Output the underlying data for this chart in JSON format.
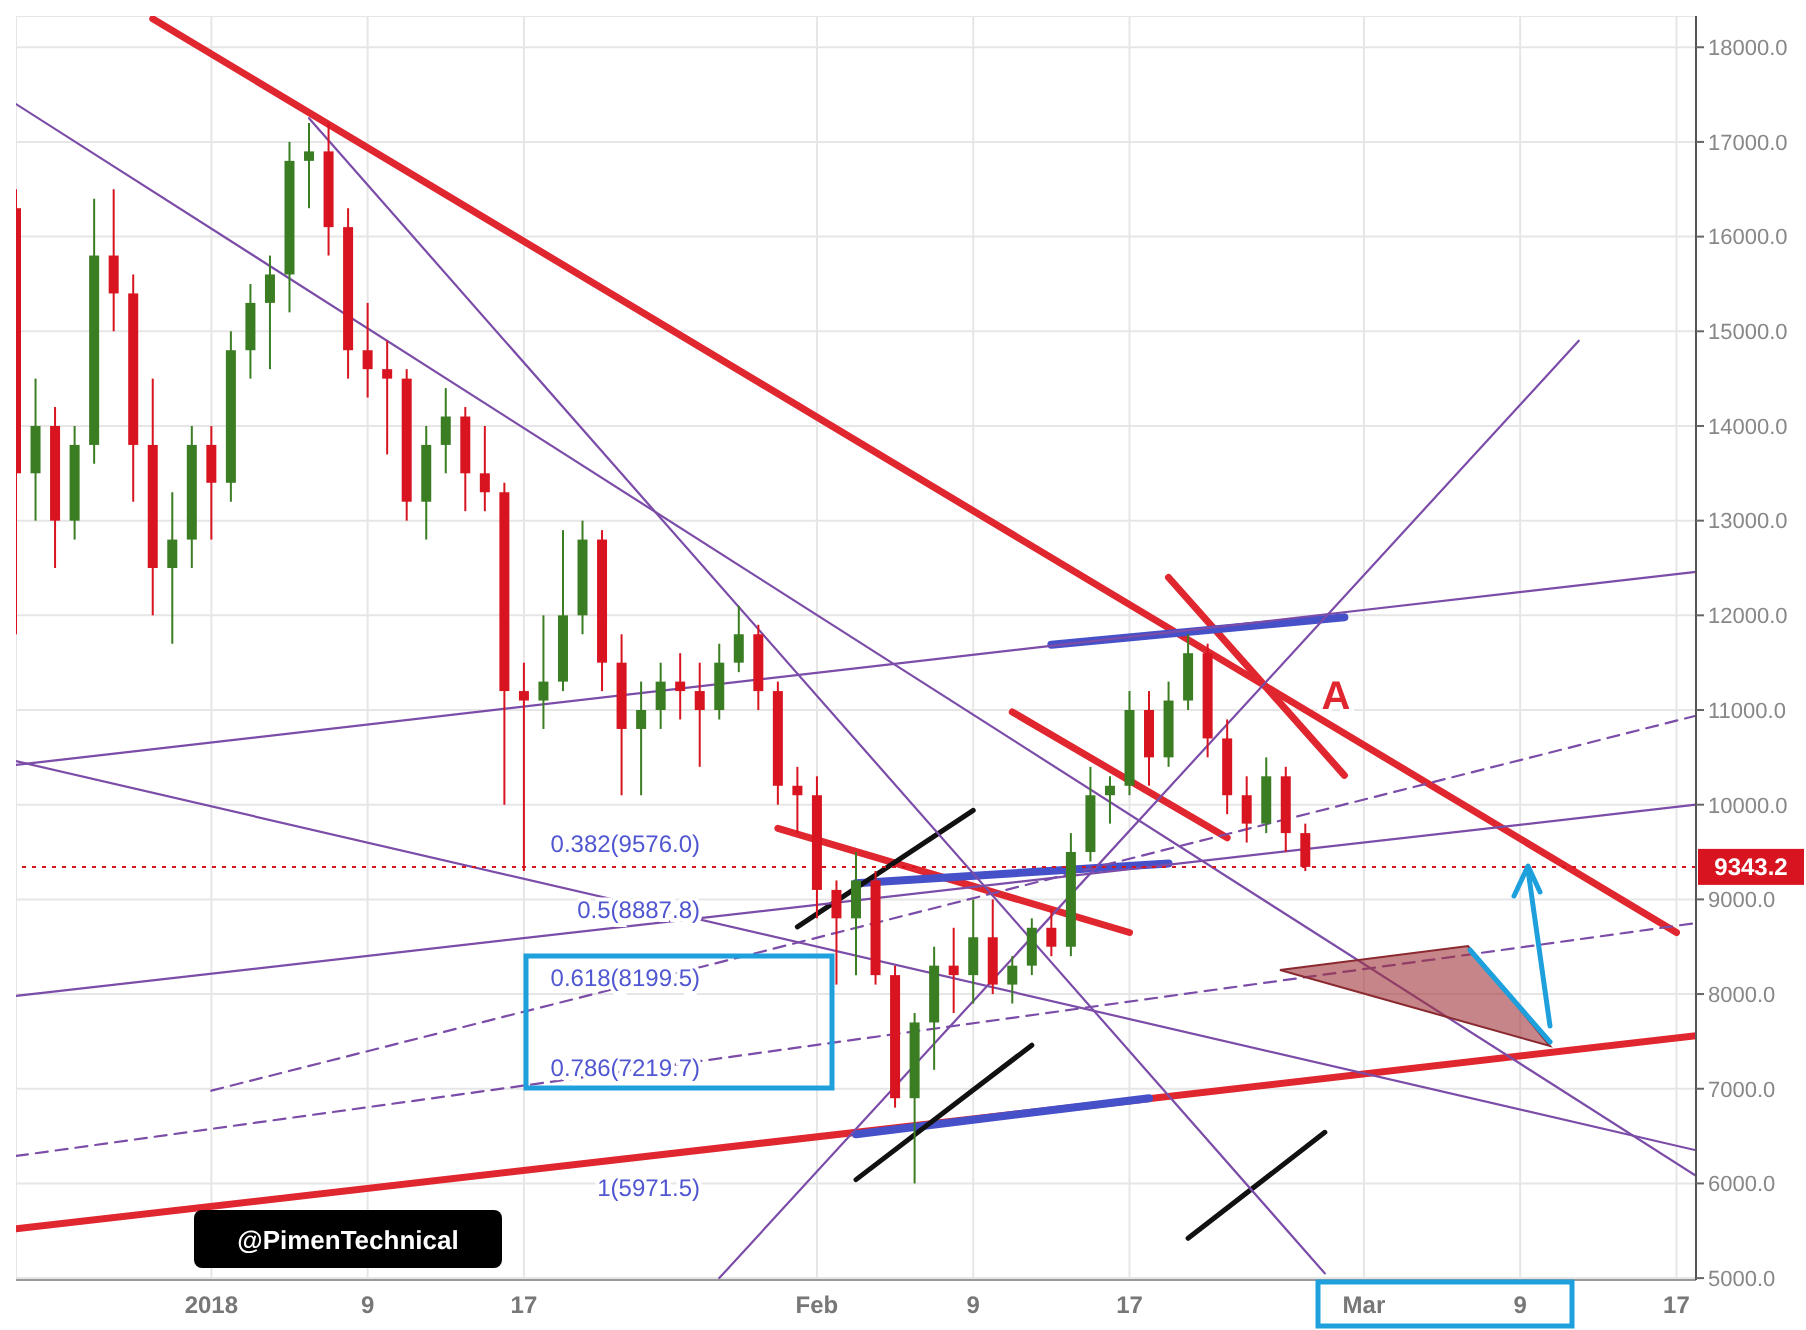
{
  "chart_data": {
    "type": "candlestick",
    "x": [
      "2017-12-22",
      "2017-12-23",
      "2017-12-24",
      "2017-12-25",
      "2017-12-26",
      "2017-12-27",
      "2017-12-28",
      "2017-12-29",
      "2017-12-30",
      "2017-12-31",
      "2018-01-01",
      "2018-01-02",
      "2018-01-03",
      "2018-01-04",
      "2018-01-05",
      "2018-01-06",
      "2018-01-07",
      "2018-01-08",
      "2018-01-09",
      "2018-01-10",
      "2018-01-11",
      "2018-01-12",
      "2018-01-13",
      "2018-01-14",
      "2018-01-15",
      "2018-01-16",
      "2018-01-17",
      "2018-01-18",
      "2018-01-19",
      "2018-01-20",
      "2018-01-21",
      "2018-01-22",
      "2018-01-23",
      "2018-01-24",
      "2018-01-25",
      "2018-01-26",
      "2018-01-27",
      "2018-01-28",
      "2018-01-29",
      "2018-01-30",
      "2018-01-31",
      "2018-02-01",
      "2018-02-02",
      "2018-02-03",
      "2018-02-04",
      "2018-02-05",
      "2018-02-06",
      "2018-02-07",
      "2018-02-08",
      "2018-02-09",
      "2018-02-10",
      "2018-02-11",
      "2018-02-12",
      "2018-02-13",
      "2018-02-14",
      "2018-02-15",
      "2018-02-16",
      "2018-02-17",
      "2018-02-18",
      "2018-02-19",
      "2018-02-20",
      "2018-02-21",
      "2018-02-22",
      "2018-02-23",
      "2018-02-24",
      "2018-02-25",
      "2018-02-26"
    ],
    "ohlc": [
      [
        16300,
        16500,
        11800,
        13500
      ],
      [
        13500,
        14500,
        13000,
        14000
      ],
      [
        14000,
        14200,
        12500,
        13000
      ],
      [
        13000,
        14000,
        12800,
        13800
      ],
      [
        13800,
        16400,
        13600,
        15800
      ],
      [
        15800,
        16500,
        15000,
        15400
      ],
      [
        15400,
        15600,
        13200,
        13800
      ],
      [
        13800,
        14500,
        12000,
        12500
      ],
      [
        12500,
        13300,
        11700,
        12800
      ],
      [
        12800,
        14000,
        12500,
        13800
      ],
      [
        13800,
        14000,
        12800,
        13400
      ],
      [
        13400,
        15000,
        13200,
        14800
      ],
      [
        14800,
        15500,
        14500,
        15300
      ],
      [
        15300,
        15800,
        14600,
        15600
      ],
      [
        15600,
        17000,
        15200,
        16800
      ],
      [
        16800,
        17200,
        16300,
        16900
      ],
      [
        16900,
        17200,
        15800,
        16100
      ],
      [
        16100,
        16300,
        14500,
        14800
      ],
      [
        14800,
        15300,
        14300,
        14600
      ],
      [
        14600,
        14900,
        13700,
        14500
      ],
      [
        14500,
        14600,
        13000,
        13200
      ],
      [
        13200,
        14000,
        12800,
        13800
      ],
      [
        13800,
        14400,
        13500,
        14100
      ],
      [
        14100,
        14200,
        13100,
        13500
      ],
      [
        13500,
        14000,
        13100,
        13300
      ],
      [
        13300,
        13400,
        10000,
        11200
      ],
      [
        11200,
        11500,
        9300,
        11100
      ],
      [
        11100,
        12000,
        10800,
        11300
      ],
      [
        11300,
        12900,
        11200,
        12000
      ],
      [
        12000,
        13000,
        11800,
        12800
      ],
      [
        12800,
        12900,
        11200,
        11500
      ],
      [
        11500,
        11800,
        10100,
        10800
      ],
      [
        10800,
        11300,
        10100,
        11000
      ],
      [
        11000,
        11500,
        10800,
        11300
      ],
      [
        11300,
        11600,
        10900,
        11200
      ],
      [
        11200,
        11500,
        10400,
        11000
      ],
      [
        11000,
        11700,
        10900,
        11500
      ],
      [
        11500,
        12100,
        11400,
        11800
      ],
      [
        11800,
        11900,
        11000,
        11200
      ],
      [
        11200,
        11300,
        10000,
        10200
      ],
      [
        10200,
        10400,
        9700,
        10100
      ],
      [
        10100,
        10300,
        8800,
        9100
      ],
      [
        9100,
        9200,
        8100,
        8800
      ],
      [
        8800,
        9500,
        8200,
        9200
      ],
      [
        9200,
        9300,
        8100,
        8200
      ],
      [
        8200,
        8300,
        6800,
        6900
      ],
      [
        6900,
        7800,
        6000,
        7700
      ],
      [
        7700,
        8500,
        7200,
        8300
      ],
      [
        8300,
        8700,
        7800,
        8200
      ],
      [
        8200,
        9000,
        7900,
        8600
      ],
      [
        8600,
        9000,
        8000,
        8100
      ],
      [
        8100,
        8400,
        7900,
        8300
      ],
      [
        8300,
        8800,
        8200,
        8700
      ],
      [
        8700,
        8900,
        8400,
        8500
      ],
      [
        8500,
        9700,
        8400,
        9500
      ],
      [
        9500,
        10400,
        9400,
        10100
      ],
      [
        10100,
        10300,
        9800,
        10200
      ],
      [
        10200,
        11200,
        10100,
        11000
      ],
      [
        11000,
        11200,
        10200,
        10500
      ],
      [
        10500,
        11300,
        10400,
        11100
      ],
      [
        11100,
        11800,
        11000,
        11600
      ],
      [
        11600,
        11700,
        10500,
        10700
      ],
      [
        10700,
        10900,
        9900,
        10100
      ],
      [
        10100,
        10300,
        9600,
        9800
      ],
      [
        9800,
        10500,
        9700,
        10300
      ],
      [
        10300,
        10400,
        9500,
        9700
      ],
      [
        9700,
        9800,
        9300,
        9343.2
      ]
    ],
    "colors": [
      "#d7141f",
      "#3b7d23",
      "#d7141f",
      "#3b7d23",
      "#3b7d23",
      "#d7141f",
      "#d7141f",
      "#d7141f",
      "#3b7d23",
      "#3b7d23",
      "#d7141f",
      "#3b7d23",
      "#3b7d23",
      "#3b7d23",
      "#3b7d23",
      "#3b7d23",
      "#d7141f",
      "#d7141f",
      "#d7141f",
      "#d7141f",
      "#d7141f",
      "#3b7d23",
      "#3b7d23",
      "#d7141f",
      "#d7141f",
      "#d7141f",
      "#d7141f",
      "#3b7d23",
      "#3b7d23",
      "#3b7d23",
      "#d7141f",
      "#d7141f",
      "#3b7d23",
      "#3b7d23",
      "#d7141f",
      "#d7141f",
      "#3b7d23",
      "#3b7d23",
      "#d7141f",
      "#d7141f",
      "#d7141f",
      "#d7141f",
      "#d7141f",
      "#3b7d23",
      "#d7141f",
      "#d7141f",
      "#3b7d23",
      "#3b7d23",
      "#d7141f",
      "#3b7d23",
      "#d7141f",
      "#3b7d23",
      "#3b7d23",
      "#d7141f",
      "#3b7d23",
      "#3b7d23",
      "#3b7d23",
      "#3b7d23",
      "#d7141f",
      "#3b7d23",
      "#3b7d23",
      "#d7141f",
      "#d7141f",
      "#d7141f",
      "#3b7d23",
      "#d7141f",
      "#d7141f"
    ],
    "series": [
      {
        "type": "line",
        "color": "#e0262f",
        "x": [
          "2017-12-29",
          "2018-03-17"
        ],
        "values": [
          18300,
          8650
        ]
      },
      {
        "type": "line",
        "color": "#e0262f",
        "x": [
          "2017-12-22",
          "2018-03-18"
        ],
        "values": [
          5520,
          7560
        ]
      },
      {
        "type": "line",
        "color": "#e0262f",
        "x": [
          "2018-02-19",
          "2018-02-28"
        ],
        "values": [
          12400,
          10310
        ]
      },
      {
        "type": "line",
        "color": "#e0262f",
        "x": [
          "2018-01-30",
          "2018-02-17"
        ],
        "values": [
          9750,
          8650
        ]
      },
      {
        "type": "line",
        "color": "#e0262f",
        "x": [
          "2018-02-11",
          "2018-02-22"
        ],
        "values": [
          10980,
          9650
        ]
      },
      {
        "type": "line",
        "color": "#4650c8",
        "x": [
          "2018-02-03",
          "2018-02-19"
        ],
        "values": [
          9170,
          9380
        ]
      },
      {
        "type": "line",
        "color": "#4650c8",
        "x": [
          "2018-02-13",
          "2018-02-28"
        ],
        "values": [
          11690,
          11980
        ]
      },
      {
        "type": "line",
        "color": "#4650c8",
        "x": [
          "2018-02-03",
          "2018-02-18"
        ],
        "values": [
          6520,
          6900
        ]
      },
      {
        "type": "line",
        "color": "#111111",
        "x": [
          "2018-01-31",
          "2018-02-09"
        ],
        "values": [
          8710,
          9940
        ]
      },
      {
        "type": "line",
        "color": "#111111",
        "x": [
          "2018-02-03",
          "2018-02-12"
        ],
        "values": [
          6040,
          7460
        ]
      },
      {
        "type": "line",
        "color": "#111111",
        "x": [
          "2018-02-20",
          "2018-02-27"
        ],
        "values": [
          5420,
          6540
        ]
      },
      {
        "type": "line",
        "color": "#7b4ca8",
        "x": [
          "2017-12-22",
          "2018-03-18"
        ],
        "values": [
          17400,
          6080
        ]
      },
      {
        "type": "line",
        "color": "#7b4ca8",
        "x": [
          "2017-12-22",
          "2018-03-18"
        ],
        "values": [
          10460,
          6350
        ]
      },
      {
        "type": "line",
        "color": "#7b4ca8",
        "x": [
          "2017-12-22",
          "2018-03-18"
        ],
        "values": [
          7980,
          10000
        ]
      },
      {
        "type": "line",
        "color": "#7b4ca8",
        "x": [
          "2017-12-22",
          "2018-03-18"
        ],
        "values": [
          10420,
          12460
        ]
      },
      {
        "type": "line",
        "color": "#7b4ca8",
        "x": [
          "2018-01-06",
          "2018-02-27"
        ],
        "values": [
          17250,
          5050
        ]
      },
      {
        "type": "line",
        "color": "#7b4ca8",
        "x": [
          "2018-01-27",
          "2018-03-12"
        ],
        "values": [
          5000,
          14900
        ]
      },
      {
        "type": "line",
        "color": "#7b4ca8",
        "line_style": "dashed",
        "x": [
          "2018-01-01",
          "2018-03-18"
        ],
        "values": [
          6980,
          10940
        ]
      },
      {
        "type": "line",
        "color": "#7b4ca8",
        "line_style": "dashed",
        "x": [
          "2017-12-22",
          "2018-03-18"
        ],
        "values": [
          6290,
          8750
        ]
      }
    ],
    "ref_lines": [
      {
        "axis": "y",
        "value": 9343.2,
        "label": "9343.2",
        "color": "#d7141f",
        "line_style": "dotted"
      }
    ],
    "annotations": [
      "0.382(9576.0)",
      "0.5(8887.8)",
      "0.618(8199.5)",
      "0.786(7219.7)",
      "1(5971.5)",
      "A",
      "@PimenTechnical"
    ],
    "xlim": [
      "2017-12-22",
      "2018-03-18"
    ],
    "xticks": [
      {
        "value": "2018-01-01",
        "label": "2018"
      },
      {
        "value": "2018-01-09",
        "label": "9"
      },
      {
        "value": "2018-01-17",
        "label": "17"
      },
      {
        "value": "2018-02-01",
        "label": "Feb"
      },
      {
        "value": "2018-02-09",
        "label": "9"
      },
      {
        "value": "2018-02-17",
        "label": "17"
      },
      {
        "value": "2018-03-01",
        "label": "Mar"
      },
      {
        "value": "2018-03-09",
        "label": "9"
      },
      {
        "value": "2018-03-17",
        "label": "17"
      }
    ],
    "ylim": [
      4980,
      18330
    ],
    "yticks": [
      {
        "value": 5000,
        "label": "5000.0"
      },
      {
        "value": 6000,
        "label": "6000.0"
      },
      {
        "value": 7000,
        "label": "7000.0"
      },
      {
        "value": 8000,
        "label": "8000.0"
      },
      {
        "value": 9000,
        "label": "9000.0"
      },
      {
        "value": 10000,
        "label": "10000.0"
      },
      {
        "value": 11000,
        "label": "11000.0"
      },
      {
        "value": 12000,
        "label": "12000.0"
      },
      {
        "value": 13000,
        "label": "13000.0"
      },
      {
        "value": 14000,
        "label": "14000.0"
      },
      {
        "value": 15000,
        "label": "15000.0"
      },
      {
        "value": 16000,
        "label": "16000.0"
      },
      {
        "value": 17000,
        "label": "17000.0"
      },
      {
        "value": 18000,
        "label": "18000.0"
      }
    ],
    "grid": true,
    "marker": "none"
  }
}
